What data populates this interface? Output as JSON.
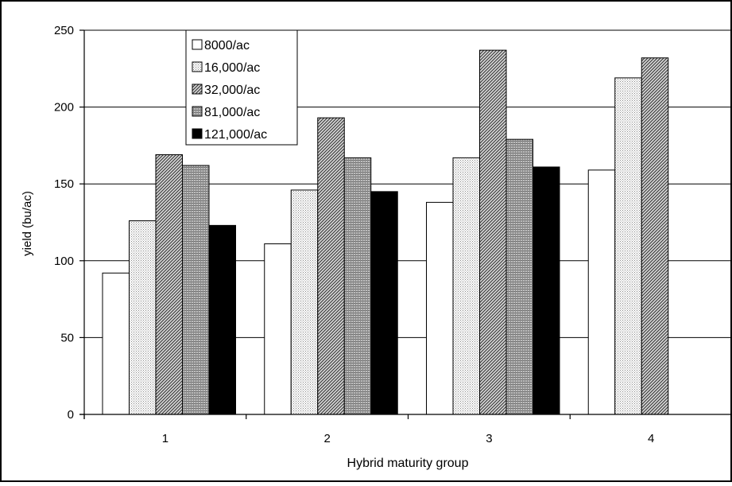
{
  "chart_data": {
    "type": "bar",
    "title": "",
    "xlabel": "Hybrid maturity group",
    "ylabel": "yield (bu/ac)",
    "categories": [
      "1",
      "2",
      "3",
      "4"
    ],
    "ylim": [
      0,
      250
    ],
    "yticks": [
      0,
      50,
      100,
      150,
      200,
      250
    ],
    "grid": true,
    "legend_position": "top-left",
    "series": [
      {
        "name": "8000/ac",
        "pattern": "white",
        "values": [
          92,
          111,
          138,
          159
        ]
      },
      {
        "name": "16,000/ac",
        "pattern": "stipple",
        "values": [
          126,
          146,
          167,
          219
        ]
      },
      {
        "name": "32,000/ac",
        "pattern": "diagonal",
        "values": [
          169,
          193,
          237,
          232
        ]
      },
      {
        "name": "81,000/ac",
        "pattern": "grid",
        "values": [
          162,
          167,
          179,
          null
        ]
      },
      {
        "name": "121,000/ac",
        "pattern": "black",
        "values": [
          123,
          145,
          161,
          null
        ]
      }
    ]
  }
}
